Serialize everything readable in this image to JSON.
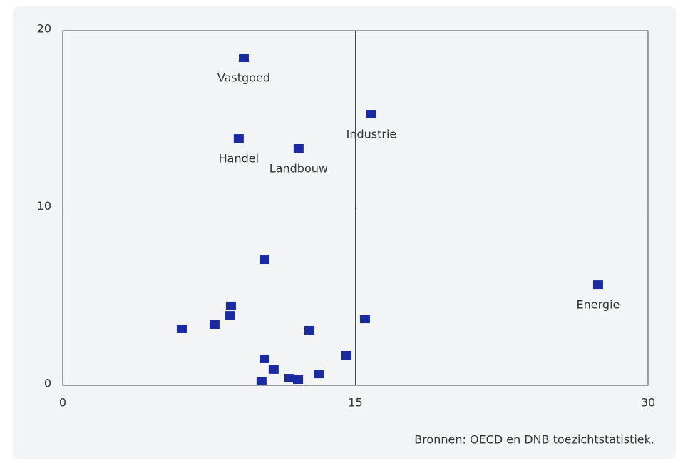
{
  "chart_data": {
    "type": "scatter",
    "x": [
      9.28,
      15.82,
      9.02,
      12.09,
      27.44,
      10.34,
      8.62,
      8.55,
      6.1,
      7.78,
      12.64,
      15.49,
      14.54,
      10.34,
      10.81,
      10.19,
      11.62,
      12.06,
      13.12
    ],
    "values": [
      18.47,
      15.29,
      13.92,
      13.36,
      5.67,
      7.08,
      4.47,
      3.94,
      3.18,
      3.42,
      3.1,
      3.74,
      1.69,
      1.49,
      0.89,
      0.24,
      0.4,
      0.32,
      0.64
    ],
    "labels": [
      "Vastgoed",
      "Industrie",
      "Handel",
      "Landbouw",
      "Energie",
      null,
      null,
      null,
      null,
      null,
      null,
      null,
      null,
      null,
      null,
      null,
      null,
      null,
      null
    ],
    "color": "#1a2aa0",
    "xlim": [
      0,
      30
    ],
    "xticks": [
      0,
      15,
      30
    ],
    "ylim": [
      0,
      20
    ],
    "yticks": [
      0,
      10,
      20
    ],
    "grid": true,
    "source": "Bronnen: OECD en DNB toezichtstatistiek."
  }
}
